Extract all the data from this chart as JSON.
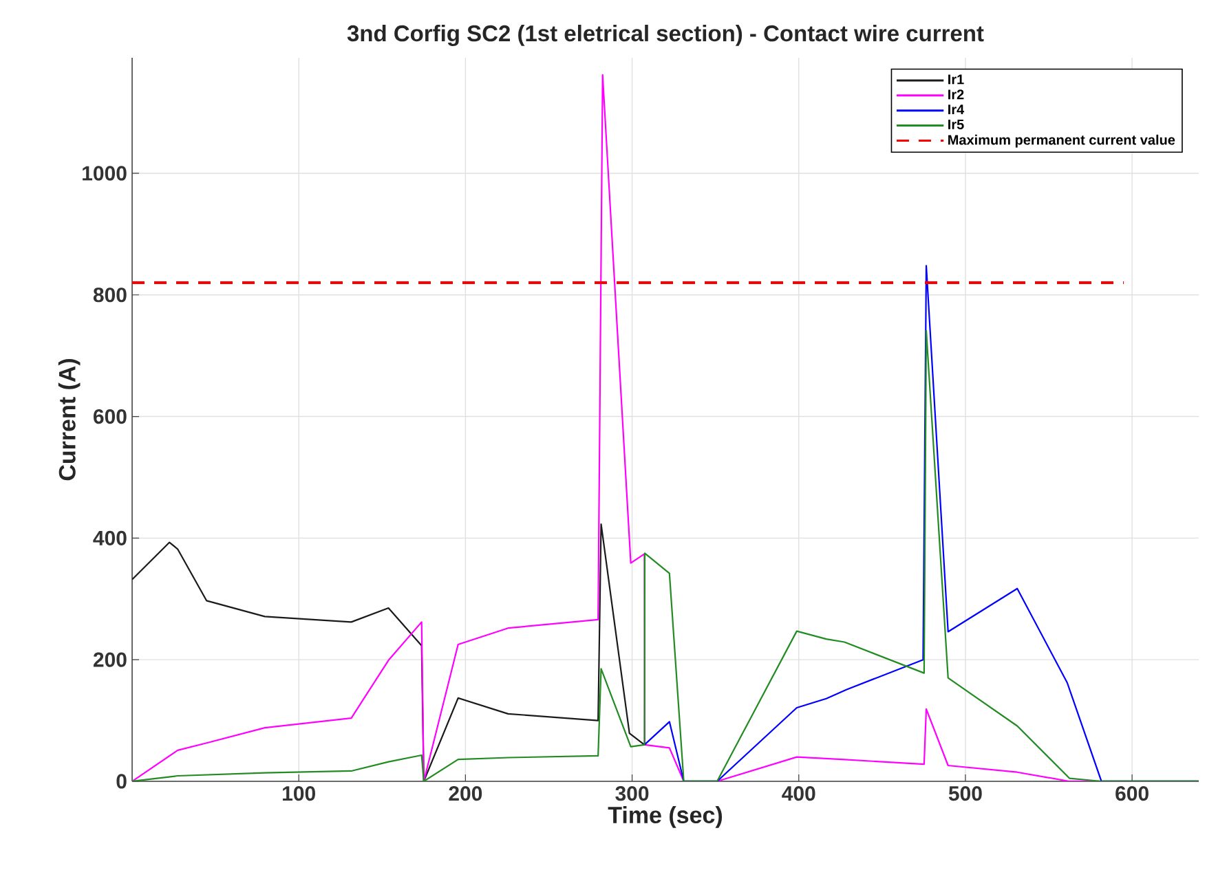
{
  "chart_data": {
    "type": "line",
    "title": "3nd Corfig SC2 (1st eletrical section) - Contact wire current",
    "xlabel": "Time (sec)",
    "ylabel": "Current (A)",
    "xlim": [
      0,
      640
    ],
    "ylim": [
      0,
      1190
    ],
    "xticks": [
      100,
      200,
      300,
      400,
      500,
      600
    ],
    "yticks": [
      0,
      200,
      400,
      600,
      800,
      1000
    ],
    "grid": true,
    "legend": "top right",
    "series": [
      {
        "name": "Ir1",
        "color": "#1a1a1a",
        "x": [
          0,
          22.4,
          27.3,
          44.7,
          79.6,
          131.5,
          153.8,
          173.7,
          175,
          195.6,
          225.6,
          279.6,
          281.4,
          298.4,
          307.4
        ],
        "values": [
          332,
          393,
          382,
          297,
          271,
          262,
          285,
          223,
          0,
          137,
          111,
          100,
          423,
          79,
          60
        ]
      },
      {
        "name": "Ir2",
        "color": "#ff00ff",
        "x": [
          0,
          27.3,
          44.7,
          79.6,
          131.5,
          153.8,
          173.7,
          175,
          195.6,
          225.6,
          279.6,
          282.3,
          299.2,
          307.4,
          307.6,
          322.4,
          331,
          351,
          398.8,
          426,
          475.2,
          476.5,
          489.6,
          531.1,
          562.4,
          640
        ],
        "values": [
          0,
          51,
          63,
          88,
          104,
          199,
          262,
          0,
          225,
          252,
          266,
          1162,
          359,
          374,
          60,
          55,
          0,
          0,
          40,
          36,
          28,
          119,
          26,
          15,
          0,
          0
        ]
      },
      {
        "name": "Ir4",
        "color": "#0000ff",
        "x": [
          307.4,
          322.4,
          331,
          351,
          398.8,
          416.5,
          428.8,
          474.6,
          476.5,
          489.6,
          531.1,
          561.1,
          581.6,
          640
        ],
        "values": [
          60,
          98,
          0,
          0,
          121,
          136,
          151,
          200,
          848,
          246,
          317,
          162,
          0,
          0
        ]
      },
      {
        "name": "Ir5",
        "color": "#228b22",
        "x": [
          0,
          27.3,
          79.6,
          131.5,
          153.8,
          173.7,
          175,
          195.6,
          225.6,
          279.6,
          281.4,
          299.2,
          307.4,
          307.6,
          322.4,
          331,
          351,
          398.8,
          416.5,
          427.4,
          475.2,
          476.5,
          489.6,
          531.1,
          562.4,
          581.6,
          640
        ],
        "values": [
          0,
          9,
          14,
          17,
          32,
          43,
          0,
          36,
          39,
          42,
          185,
          57,
          60,
          375,
          342,
          0,
          0,
          247,
          234,
          229,
          178,
          741,
          170,
          91,
          5,
          0,
          0
        ]
      },
      {
        "name": "Maximum permanent current value",
        "color": "#ff0000",
        "line_style": "dashed",
        "x": [
          0,
          595
        ],
        "values": [
          820,
          820
        ]
      }
    ]
  }
}
